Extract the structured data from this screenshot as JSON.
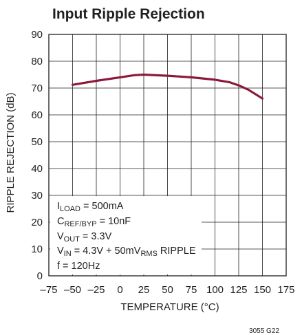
{
  "chart_data": {
    "type": "line",
    "title": "Input Ripple Rejection",
    "xlabel": "TEMPERATURE (°C)",
    "ylabel": "RIPPLE REJECTION (dB)",
    "xlim": [
      -75,
      175
    ],
    "ylim": [
      0,
      90
    ],
    "x_ticks": [
      -75,
      -50,
      -25,
      0,
      25,
      50,
      75,
      100,
      125,
      150,
      175
    ],
    "y_ticks": [
      0,
      10,
      20,
      30,
      40,
      50,
      60,
      70,
      80,
      90
    ],
    "grid": true,
    "series": [
      {
        "color": "#8b1a3a",
        "x": [
          -50,
          -25,
          0,
          15,
          25,
          50,
          75,
          100,
          115,
          125,
          135,
          150
        ],
        "y": [
          71.2,
          72.7,
          74.0,
          74.8,
          75.0,
          74.6,
          74.0,
          73.1,
          72.2,
          71.0,
          69.4,
          66.1
        ]
      }
    ],
    "annotations": [
      {
        "main": "I",
        "sub": "LOAD",
        "rest": " = 500mA"
      },
      {
        "main": "C",
        "sub": "REF/BYP",
        "rest": " = 10nF"
      },
      {
        "main": "V",
        "sub": "OUT",
        "rest": " = 3.3V"
      },
      {
        "main": "V",
        "sub": "IN",
        "rest": " = 4.3V + 50mV",
        "sub2": "RMS",
        "rest2": " RIPPLE"
      },
      {
        "main": "f = 120Hz"
      }
    ],
    "footnote": "3055 G22"
  }
}
